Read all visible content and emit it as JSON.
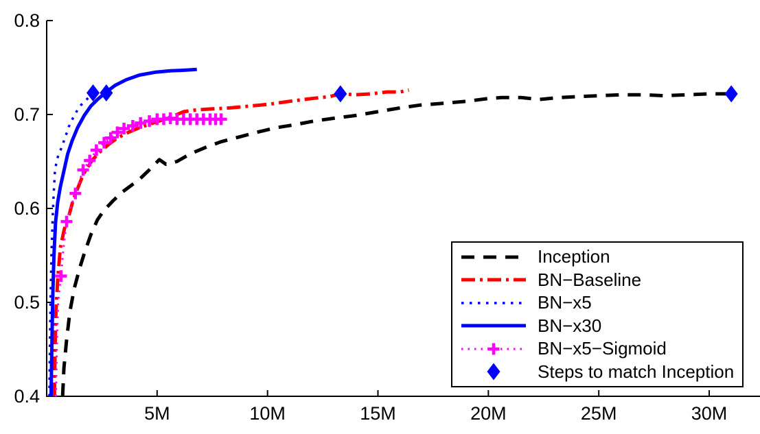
{
  "chart_data": {
    "type": "line",
    "title": "",
    "xlabel": "",
    "ylabel": "",
    "x_range": [
      0,
      32.3
    ],
    "y_range": [
      0.4,
      0.8
    ],
    "x_unit": "millions of training steps",
    "grid": false,
    "x_ticks": [
      {
        "value": 5,
        "label": "5M"
      },
      {
        "value": 10,
        "label": "10M"
      },
      {
        "value": 15,
        "label": "15M"
      },
      {
        "value": 20,
        "label": "20M"
      },
      {
        "value": 25,
        "label": "25M"
      },
      {
        "value": 30,
        "label": "30M"
      }
    ],
    "y_ticks": [
      {
        "value": 0.8,
        "label": "0.8"
      },
      {
        "value": 0.7,
        "label": "0.7"
      },
      {
        "value": 0.6,
        "label": "0.6"
      },
      {
        "value": 0.5,
        "label": "0.5"
      },
      {
        "value": 0.4,
        "label": "0.4"
      }
    ],
    "legend_position": "bottom-right",
    "series": [
      {
        "name": "Inception",
        "color": "#000000",
        "style": "dash",
        "width": 5,
        "points": [
          [
            0.72,
            0.4
          ],
          [
            0.78,
            0.43
          ],
          [
            0.9,
            0.46
          ],
          [
            1.05,
            0.49
          ],
          [
            1.25,
            0.515
          ],
          [
            1.5,
            0.537
          ],
          [
            1.7,
            0.552
          ],
          [
            2.0,
            0.572
          ],
          [
            2.3,
            0.588
          ],
          [
            2.6,
            0.598
          ],
          [
            3.0,
            0.608
          ],
          [
            3.4,
            0.617
          ],
          [
            3.8,
            0.624
          ],
          [
            4.2,
            0.631
          ],
          [
            4.6,
            0.64
          ],
          [
            5.1,
            0.652
          ],
          [
            5.4,
            0.647
          ],
          [
            5.9,
            0.65
          ],
          [
            6.5,
            0.658
          ],
          [
            7.2,
            0.665
          ],
          [
            7.9,
            0.671
          ],
          [
            8.7,
            0.676
          ],
          [
            9.5,
            0.681
          ],
          [
            10.4,
            0.686
          ],
          [
            11.2,
            0.689
          ],
          [
            12.1,
            0.693
          ],
          [
            13.0,
            0.696
          ],
          [
            14.0,
            0.699
          ],
          [
            15.0,
            0.703
          ],
          [
            16.0,
            0.707
          ],
          [
            16.9,
            0.71
          ],
          [
            18.0,
            0.712
          ],
          [
            19.0,
            0.714
          ],
          [
            20.0,
            0.717
          ],
          [
            20.6,
            0.718
          ],
          [
            21.5,
            0.718
          ],
          [
            22.3,
            0.716
          ],
          [
            23.2,
            0.718
          ],
          [
            24.0,
            0.719
          ],
          [
            25.0,
            0.72
          ],
          [
            26.0,
            0.721
          ],
          [
            27.0,
            0.721
          ],
          [
            28.0,
            0.72
          ],
          [
            29.0,
            0.721
          ],
          [
            30.0,
            0.722
          ],
          [
            31.0,
            0.722
          ]
        ]
      },
      {
        "name": "BN−Baseline",
        "color": "#ff0000",
        "style": "dashdot",
        "width": 5,
        "points": [
          [
            0.35,
            0.4
          ],
          [
            0.38,
            0.45
          ],
          [
            0.42,
            0.49
          ],
          [
            0.5,
            0.525
          ],
          [
            0.62,
            0.558
          ],
          [
            0.8,
            0.578
          ],
          [
            1.0,
            0.592
          ],
          [
            1.2,
            0.609
          ],
          [
            1.45,
            0.624
          ],
          [
            1.65,
            0.636
          ],
          [
            2.05,
            0.651
          ],
          [
            2.4,
            0.66
          ],
          [
            2.8,
            0.668
          ],
          [
            3.2,
            0.675
          ],
          [
            3.7,
            0.681
          ],
          [
            4.2,
            0.686
          ],
          [
            4.7,
            0.69
          ],
          [
            5.2,
            0.694
          ],
          [
            5.7,
            0.698
          ],
          [
            6.2,
            0.703
          ],
          [
            6.8,
            0.705
          ],
          [
            7.5,
            0.706
          ],
          [
            8.3,
            0.707
          ],
          [
            9.2,
            0.709
          ],
          [
            10.1,
            0.711
          ],
          [
            11.0,
            0.714
          ],
          [
            12.0,
            0.717
          ],
          [
            12.8,
            0.719
          ],
          [
            13.3,
            0.722
          ],
          [
            14.0,
            0.721
          ],
          [
            14.7,
            0.722
          ],
          [
            15.4,
            0.724
          ],
          [
            16.0,
            0.724
          ],
          [
            16.4,
            0.726
          ]
        ]
      },
      {
        "name": "BN−x5",
        "color": "#0000ff",
        "style": "dot",
        "width": 3.5,
        "points": [
          [
            0.12,
            0.4
          ],
          [
            0.15,
            0.46
          ],
          [
            0.18,
            0.51
          ],
          [
            0.22,
            0.555
          ],
          [
            0.27,
            0.59
          ],
          [
            0.32,
            0.617
          ],
          [
            0.37,
            0.638
          ],
          [
            0.45,
            0.651
          ],
          [
            0.55,
            0.658
          ],
          [
            0.68,
            0.665
          ],
          [
            0.78,
            0.672
          ],
          [
            0.9,
            0.68
          ],
          [
            1.0,
            0.687
          ],
          [
            1.12,
            0.693
          ],
          [
            1.25,
            0.699
          ],
          [
            1.4,
            0.705
          ],
          [
            1.55,
            0.71
          ],
          [
            1.72,
            0.714
          ],
          [
            1.9,
            0.718
          ],
          [
            2.1,
            0.722
          ]
        ]
      },
      {
        "name": "BN−x30",
        "color": "#0000ff",
        "style": "solid",
        "width": 5,
        "points": [
          [
            0.2,
            0.4
          ],
          [
            0.24,
            0.46
          ],
          [
            0.28,
            0.51
          ],
          [
            0.33,
            0.55
          ],
          [
            0.4,
            0.585
          ],
          [
            0.5,
            0.607
          ],
          [
            0.62,
            0.623
          ],
          [
            0.78,
            0.64
          ],
          [
            0.95,
            0.658
          ],
          [
            1.15,
            0.672
          ],
          [
            1.4,
            0.686
          ],
          [
            1.7,
            0.699
          ],
          [
            2.0,
            0.709
          ],
          [
            2.3,
            0.716
          ],
          [
            2.7,
            0.724
          ],
          [
            3.1,
            0.731
          ],
          [
            3.6,
            0.737
          ],
          [
            4.2,
            0.742
          ],
          [
            4.9,
            0.745
          ],
          [
            5.6,
            0.7465
          ],
          [
            6.1,
            0.747
          ],
          [
            6.5,
            0.7475
          ],
          [
            6.8,
            0.748
          ]
        ]
      },
      {
        "name": "BN−x5−Sigmoid",
        "color": "#ff00ff",
        "style": "dotfine",
        "width": 3,
        "marker": "plus",
        "points": [
          [
            0.42,
            0.4
          ],
          [
            0.45,
            0.44
          ],
          [
            0.48,
            0.47
          ],
          [
            0.52,
            0.5
          ],
          [
            0.58,
            0.515
          ],
          [
            0.65,
            0.528
          ],
          [
            0.75,
            0.555
          ],
          [
            0.9,
            0.586
          ],
          [
            1.1,
            0.602
          ],
          [
            1.3,
            0.616
          ],
          [
            1.5,
            0.63
          ],
          [
            1.65,
            0.641
          ],
          [
            1.95,
            0.651
          ],
          [
            2.25,
            0.662
          ],
          [
            2.6,
            0.67
          ],
          [
            2.9,
            0.675
          ],
          [
            3.2,
            0.681
          ],
          [
            3.5,
            0.685
          ],
          [
            3.9,
            0.688
          ],
          [
            4.25,
            0.691
          ],
          [
            4.65,
            0.693
          ],
          [
            5.05,
            0.695
          ],
          [
            5.5,
            0.695
          ],
          [
            5.8,
            0.696
          ],
          [
            6.2,
            0.695
          ],
          [
            6.6,
            0.695
          ],
          [
            7.0,
            0.695
          ],
          [
            7.45,
            0.695
          ],
          [
            7.9,
            0.695
          ]
        ],
        "marker_points": [
          [
            0.65,
            0.528
          ],
          [
            0.9,
            0.586
          ],
          [
            1.3,
            0.616
          ],
          [
            1.65,
            0.641
          ],
          [
            1.95,
            0.651
          ],
          [
            2.25,
            0.662
          ],
          [
            2.6,
            0.67
          ],
          [
            2.9,
            0.675
          ],
          [
            3.2,
            0.681
          ],
          [
            3.5,
            0.685
          ],
          [
            3.9,
            0.688
          ],
          [
            4.25,
            0.691
          ],
          [
            4.65,
            0.693
          ],
          [
            5.0,
            0.695
          ],
          [
            5.3,
            0.695
          ],
          [
            5.6,
            0.696
          ],
          [
            5.9,
            0.695
          ],
          [
            6.2,
            0.695
          ],
          [
            6.5,
            0.695
          ],
          [
            6.8,
            0.695
          ],
          [
            7.1,
            0.695
          ],
          [
            7.4,
            0.695
          ],
          [
            7.65,
            0.695
          ],
          [
            7.9,
            0.695
          ]
        ]
      }
    ],
    "match_series": {
      "name": "Steps to match Inception",
      "color": "#0000ff",
      "marker": "diamond",
      "points": [
        [
          2.1,
          0.723
        ],
        [
          2.7,
          0.723
        ],
        [
          13.3,
          0.722
        ],
        [
          31.0,
          0.722
        ]
      ]
    }
  }
}
